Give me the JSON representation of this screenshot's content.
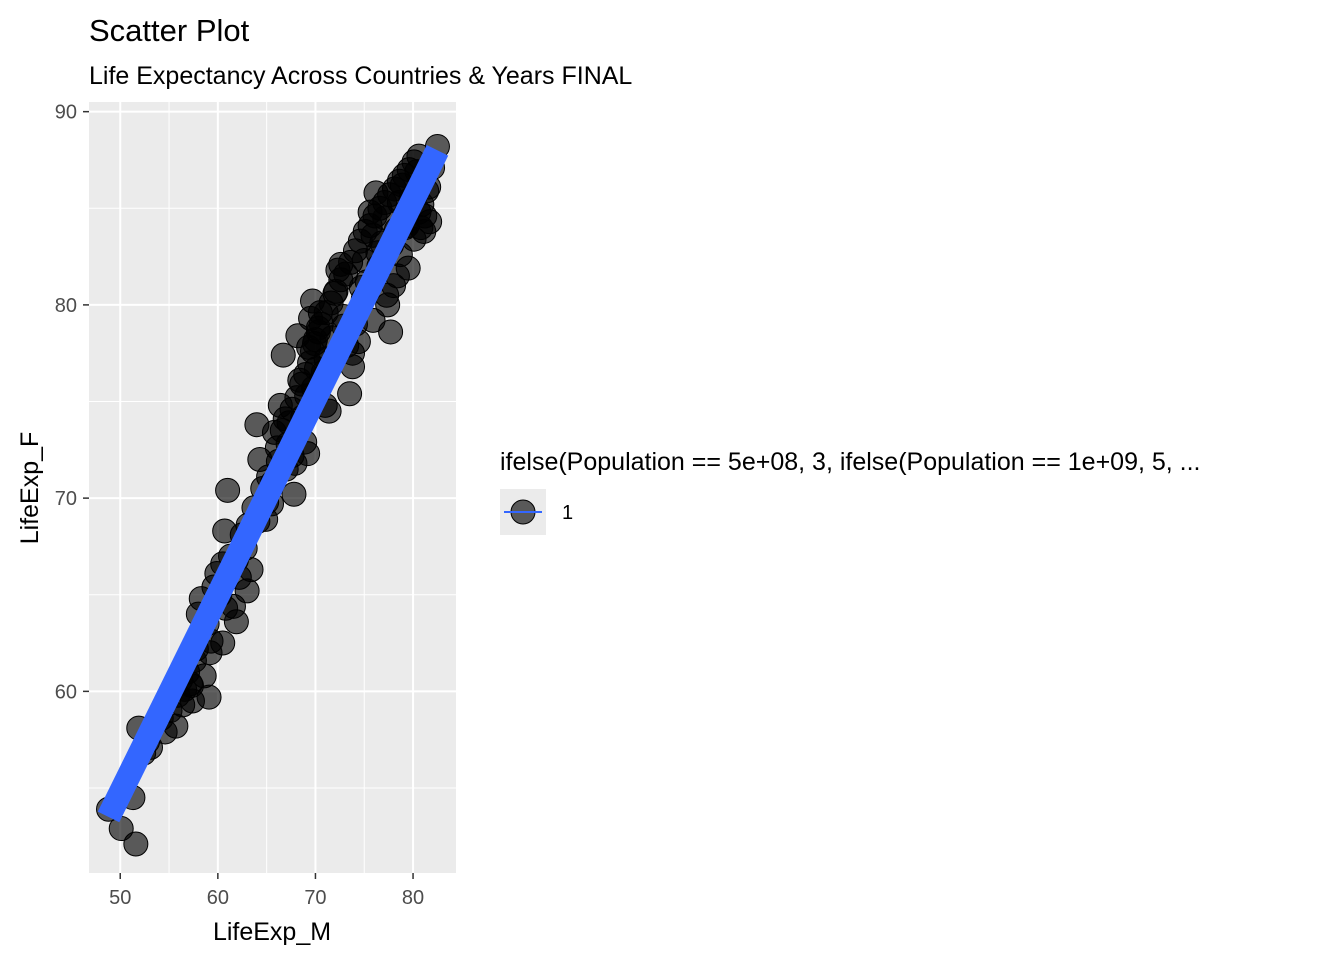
{
  "chart_data": {
    "type": "scatter",
    "title": "Scatter Plot",
    "subtitle": "Life Expectancy Across Countries & Years FINAL",
    "xlabel": "LifeExp_M",
    "ylabel": "LifeExp_F",
    "xlim": [
      46.8,
      84.4
    ],
    "ylim": [
      50.6,
      90.5
    ],
    "x_ticks": [
      50,
      60,
      70,
      80
    ],
    "y_ticks": [
      60,
      70,
      80,
      90
    ],
    "grid": true,
    "legend": {
      "position": "right",
      "title": "ifelse(Population == 5e+08, 3, ifelse(Population == 1e+09, 5, ...",
      "entries": [
        "1"
      ]
    },
    "colors": {
      "panel_background": "#ebebeb",
      "grid": "#ffffff",
      "points": "#000000",
      "trend_line": "#3366ff"
    },
    "series": [
      {
        "type": "points",
        "x": [
          48.8,
          50.1,
          51.3,
          51.6,
          51.9,
          52.8,
          53.1,
          54.2,
          55.1,
          55.7,
          56.2,
          56.4,
          56.6,
          56.9,
          57.2,
          57.4,
          57.6,
          57.8,
          58.0,
          58.3,
          58.6,
          58.9,
          59.1,
          59.3,
          59.6,
          59.9,
          60.2,
          60.5,
          60.7,
          61.0,
          61.3,
          61.6,
          61.9,
          62.2,
          62.5,
          62.8,
          63.1,
          63.4,
          63.7,
          64.0,
          64.3,
          64.6,
          64.9,
          65.2,
          65.5,
          65.8,
          66.1,
          66.4,
          66.7,
          67.0,
          67.3,
          67.6,
          67.9,
          68.2,
          68.4,
          68.7,
          68.9,
          69.1,
          69.3,
          69.5,
          69.7,
          69.9,
          70.1,
          70.3,
          70.5,
          70.8,
          71.1,
          71.4,
          71.7,
          72.0,
          72.3,
          72.6,
          72.9,
          73.2,
          73.5,
          73.8,
          74.1,
          74.4,
          74.7,
          75.0,
          75.3,
          75.6,
          75.9,
          76.2,
          76.5,
          76.8,
          77.1,
          77.4,
          77.7,
          78.0,
          78.3,
          78.6,
          78.9,
          79.2,
          79.5,
          79.8,
          80.1,
          80.4,
          80.6,
          80.9,
          81.1,
          81.4,
          81.7,
          82.0,
          82.5,
          66.6,
          66.9,
          67.2,
          67.6,
          68.1,
          68.6,
          69.0,
          69.4,
          69.7,
          70.0,
          70.3,
          70.6,
          71.1,
          71.6,
          72.1,
          72.6,
          73.1,
          73.6,
          74.1,
          74.6,
          75.1,
          75.6,
          76.1,
          76.6,
          77.1,
          77.6,
          78.1,
          78.6,
          79.1,
          79.6,
          80.1,
          80.6,
          60.5,
          63.0,
          67.8,
          69.2,
          71.0,
          73.8,
          75.9,
          77.3,
          78.7,
          80.8,
          81.2,
          59.2,
          57.3,
          55.9,
          54.6,
          52.4,
          60.8,
          61.9,
          64.1,
          65.0,
          66.2,
          65.6,
          69.8,
          70.9,
          72.9,
          74.9,
          76.4,
          79.4,
          80.2,
          81.6,
          77.8,
          78.4
        ],
        "y": [
          53.9,
          52.9,
          54.5,
          52.1,
          58.1,
          57.4,
          57.1,
          58.6,
          59.0,
          58.2,
          60.6,
          59.3,
          60.1,
          61.0,
          60.4,
          59.5,
          61.6,
          62.2,
          64.0,
          64.8,
          60.8,
          63.5,
          59.7,
          62.6,
          65.4,
          66.1,
          65.0,
          66.6,
          68.3,
          70.4,
          67.0,
          64.4,
          63.6,
          65.9,
          68.1,
          67.4,
          68.6,
          66.3,
          69.5,
          73.8,
          72.0,
          70.5,
          68.9,
          71.1,
          69.7,
          73.4,
          72.6,
          74.8,
          77.4,
          71.5,
          73.9,
          72.2,
          71.8,
          78.4,
          76.1,
          74.2,
          72.9,
          75.3,
          77.8,
          79.3,
          80.2,
          78.0,
          76.7,
          78.8,
          79.6,
          76.5,
          77.2,
          74.5,
          78.3,
          80.6,
          81.8,
          82.1,
          79.4,
          77.9,
          75.4,
          76.8,
          79.0,
          78.1,
          80.9,
          82.3,
          81.2,
          84.8,
          83.6,
          85.8,
          82.0,
          83.2,
          84.5,
          80.0,
          78.6,
          81.0,
          83.9,
          85.3,
          86.2,
          84.0,
          81.9,
          85.5,
          83.4,
          86.9,
          84.8,
          85.2,
          83.8,
          85.9,
          84.3,
          87.1,
          88.2,
          73.5,
          74.1,
          72.8,
          74.6,
          75.2,
          75.9,
          76.4,
          77.0,
          77.6,
          78.2,
          78.6,
          79.0,
          79.6,
          80.1,
          80.7,
          81.3,
          81.6,
          82.2,
          82.8,
          83.3,
          83.8,
          84.1,
          84.6,
          85.0,
          85.3,
          85.7,
          86.0,
          86.4,
          86.7,
          87.0,
          87.4,
          87.7,
          62.5,
          65.2,
          70.2,
          72.3,
          74.8,
          77.5,
          79.2,
          80.5,
          82.6,
          84.0,
          84.6,
          62.0,
          60.3,
          59.8,
          57.9,
          56.8,
          64.3,
          66.8,
          68.8,
          69.8,
          71.9,
          70.8,
          75.7,
          76.3,
          78.9,
          80.3,
          82.7,
          84.1,
          85.6,
          86.1,
          83.1,
          81.5
        ]
      },
      {
        "type": "line",
        "name": "1",
        "x": [
          48.8,
          82.5
        ],
        "y": [
          53.5,
          88.0
        ]
      }
    ]
  }
}
